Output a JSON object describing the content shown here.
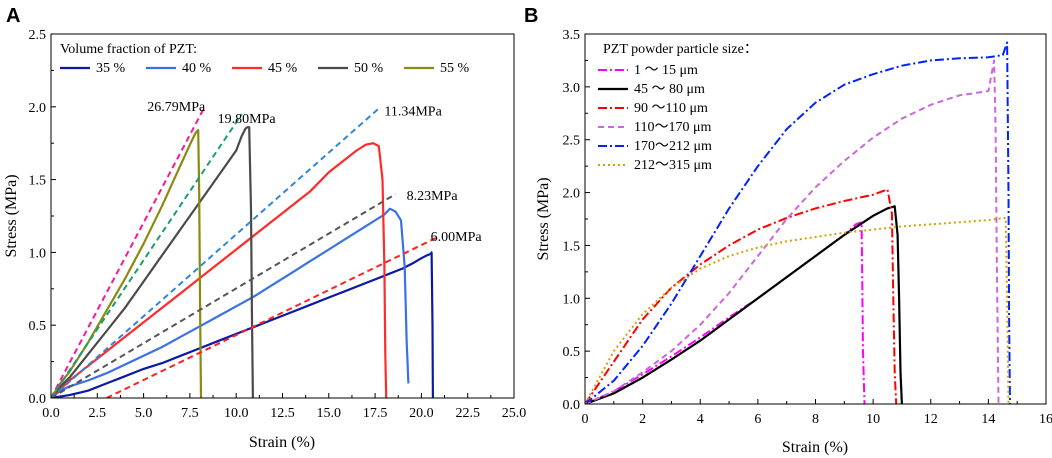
{
  "chart_data": [
    {
      "panel": "A",
      "type": "line",
      "xlabel": "Strain (%)",
      "ylabel": "Stress (MPa)",
      "xlim": [
        0,
        25
      ],
      "ylim": [
        0,
        2.5
      ],
      "xticks": [
        "0.0",
        "2.5",
        "5.0",
        "7.5",
        "10.0",
        "12.5",
        "15.0",
        "17.5",
        "20.0",
        "22.5",
        "25.0"
      ],
      "yticks": [
        "0.0",
        "0.5",
        "1.0",
        "1.5",
        "2.0",
        "2.5"
      ],
      "legend_title": "Volume fraction of PZT:",
      "series": [
        {
          "name": "35 %",
          "color": "#0b1aa6",
          "width": 2.2,
          "dash": "",
          "x": [
            0,
            1,
            2,
            3,
            4,
            5,
            6,
            7,
            8,
            9,
            10,
            11,
            12,
            13,
            14,
            15,
            16,
            17,
            18,
            19,
            19.6,
            20.0,
            20.3,
            20.5,
            20.55,
            20.6,
            20.62
          ],
          "y": [
            0,
            0.02,
            0.05,
            0.1,
            0.15,
            0.2,
            0.24,
            0.29,
            0.34,
            0.39,
            0.44,
            0.49,
            0.54,
            0.59,
            0.64,
            0.69,
            0.74,
            0.79,
            0.84,
            0.89,
            0.93,
            0.96,
            0.98,
            0.99,
            1.0,
            0.5,
            0
          ]
        },
        {
          "name": "40 %",
          "color": "#3b71e6",
          "width": 2.2,
          "dash": "",
          "x": [
            0,
            0.5,
            1,
            2,
            3,
            4,
            5,
            6,
            7,
            8,
            9,
            10,
            11,
            12,
            13,
            14,
            15,
            16,
            17,
            18,
            18.3,
            18.6,
            18.9,
            19.1,
            19.2,
            19.3
          ],
          "y": [
            0,
            0.05,
            0.08,
            0.12,
            0.17,
            0.23,
            0.29,
            0.35,
            0.42,
            0.49,
            0.56,
            0.63,
            0.7,
            0.78,
            0.86,
            0.94,
            1.02,
            1.1,
            1.18,
            1.26,
            1.3,
            1.28,
            1.22,
            0.9,
            0.4,
            0.1
          ]
        },
        {
          "name": "45 %",
          "color": "#ff2a2a",
          "width": 2.2,
          "dash": "",
          "x": [
            0,
            0.5,
            1,
            2,
            3,
            4,
            5,
            6,
            7,
            8,
            9,
            10,
            11,
            12,
            13,
            14,
            15,
            16,
            16.5,
            17,
            17.4,
            17.7,
            17.9,
            18.0,
            18.05,
            18.1
          ],
          "y": [
            0,
            0.06,
            0.12,
            0.22,
            0.32,
            0.42,
            0.52,
            0.62,
            0.72,
            0.82,
            0.92,
            1.02,
            1.12,
            1.22,
            1.32,
            1.42,
            1.55,
            1.65,
            1.7,
            1.74,
            1.75,
            1.73,
            1.5,
            0.9,
            0.3,
            0
          ]
        },
        {
          "name": "50 %",
          "color": "#4a4a4a",
          "width": 2.2,
          "dash": "",
          "x": [
            0,
            0.5,
            1,
            2,
            3,
            4,
            5,
            6,
            7,
            8,
            9,
            10,
            10.3,
            10.5,
            10.6,
            10.7,
            10.8,
            10.85,
            10.9
          ],
          "y": [
            0,
            0.08,
            0.14,
            0.3,
            0.46,
            0.62,
            0.8,
            0.98,
            1.16,
            1.34,
            1.52,
            1.7,
            1.8,
            1.85,
            1.86,
            1.86,
            1.3,
            0.6,
            0
          ]
        },
        {
          "name": "55 %",
          "color": "#8a8a10",
          "width": 2.2,
          "dash": "",
          "x": [
            0,
            0.5,
            1,
            2,
            3,
            4,
            5,
            6,
            7,
            7.5,
            7.8,
            7.95,
            8.0,
            8.05,
            8.1
          ],
          "y": [
            0,
            0.1,
            0.18,
            0.38,
            0.6,
            0.82,
            1.06,
            1.32,
            1.6,
            1.74,
            1.82,
            1.84,
            1.4,
            0.6,
            0
          ]
        }
      ],
      "fit_lines": [
        {
          "color": "#ff1493",
          "x": [
            0,
            8.3
          ],
          "y": [
            0,
            2.0
          ]
        },
        {
          "color": "#1a9e6e",
          "x": [
            0,
            10.3
          ],
          "y": [
            0,
            1.95
          ]
        },
        {
          "color": "#2e86de",
          "x": [
            0,
            17.8
          ],
          "y": [
            0,
            2.0
          ]
        },
        {
          "color": "#555555",
          "x": [
            0,
            18.6
          ],
          "y": [
            0,
            1.4
          ]
        },
        {
          "color": "#ff2020",
          "x": [
            3.0,
            20.8
          ],
          "y": [
            0,
            1.1
          ]
        }
      ],
      "annotations": [
        {
          "text": "26.79MPa",
          "x": 5.2,
          "y": 1.97
        },
        {
          "text": "19.80MPa",
          "x": 9.0,
          "y": 1.89
        },
        {
          "text": "11.34MPa",
          "x": 18.0,
          "y": 1.94
        },
        {
          "text": "8.23MPa",
          "x": 19.2,
          "y": 1.36
        },
        {
          "text": "6.00MPa",
          "x": 20.5,
          "y": 1.08
        }
      ]
    },
    {
      "panel": "B",
      "type": "line",
      "xlabel": "Strain (%)",
      "ylabel": "Stress (MPa)",
      "xlim": [
        0,
        16
      ],
      "ylim": [
        0,
        3.5
      ],
      "xticks": [
        "0",
        "2",
        "4",
        "6",
        "8",
        "10",
        "12",
        "14",
        "16"
      ],
      "yticks": [
        "0.0",
        "0.5",
        "1.0",
        "1.5",
        "2.0",
        "2.5",
        "3.0",
        "3.5"
      ],
      "legend_title": "PZT powder particle size：",
      "series": [
        {
          "name": "1 ～ 15 μm",
          "color": "#ff00ff",
          "width": 2,
          "dash": "9,3,2,3",
          "x": [
            0,
            1,
            2,
            3,
            4,
            5,
            6,
            7,
            8,
            9,
            9.4,
            9.6,
            9.62,
            9.65,
            9.7
          ],
          "y": [
            0,
            0.12,
            0.28,
            0.45,
            0.63,
            0.82,
            1.0,
            1.2,
            1.4,
            1.6,
            1.7,
            1.72,
            1.2,
            0.5,
            0
          ]
        },
        {
          "name": "45 ～ 80 μm",
          "color": "#000000",
          "width": 2.2,
          "dash": "",
          "x": [
            0,
            1,
            2,
            3,
            4,
            5,
            6,
            7,
            8,
            9,
            10,
            10.5,
            10.75,
            10.85,
            10.9,
            10.95,
            11.0
          ],
          "y": [
            0,
            0.1,
            0.25,
            0.42,
            0.6,
            0.8,
            1.0,
            1.2,
            1.4,
            1.6,
            1.78,
            1.85,
            1.87,
            1.6,
            1.0,
            0.3,
            0
          ]
        },
        {
          "name": "90 ～110 μm",
          "color": "#ff0000",
          "width": 2,
          "dash": "9,3,2,3",
          "x": [
            0,
            1,
            2,
            3,
            4,
            5,
            6,
            7,
            8,
            9,
            10,
            10.5,
            10.65,
            10.7,
            10.75,
            10.8
          ],
          "y": [
            0,
            0.4,
            0.8,
            1.1,
            1.32,
            1.5,
            1.65,
            1.76,
            1.85,
            1.92,
            1.98,
            2.03,
            1.8,
            1.0,
            0.3,
            0
          ]
        },
        {
          "name": "110～170 μm",
          "color": "#cc66dd",
          "width": 2,
          "dash": "6,4",
          "x": [
            0,
            1,
            2,
            3,
            4,
            5,
            6,
            7,
            8,
            9,
            10,
            11,
            12,
            13,
            14,
            14.2,
            14.25,
            14.3,
            14.35
          ],
          "y": [
            0,
            0.12,
            0.3,
            0.5,
            0.75,
            1.05,
            1.4,
            1.75,
            2.05,
            2.3,
            2.52,
            2.7,
            2.83,
            2.92,
            2.96,
            3.25,
            2.6,
            1.2,
            0
          ]
        },
        {
          "name": "170～212 μm",
          "color": "#0022ff",
          "width": 2,
          "dash": "9,3,2,3",
          "x": [
            0,
            1,
            2,
            3,
            4,
            5,
            6,
            7,
            8,
            9,
            10,
            11,
            12,
            13,
            14,
            14.5,
            14.65,
            14.7,
            14.72,
            14.75
          ],
          "y": [
            0,
            0.22,
            0.55,
            0.95,
            1.4,
            1.85,
            2.25,
            2.6,
            2.85,
            3.02,
            3.12,
            3.2,
            3.25,
            3.27,
            3.28,
            3.3,
            3.42,
            2.0,
            0.8,
            0
          ]
        },
        {
          "name": "212～315 μm",
          "color": "#d4a000",
          "width": 2,
          "dash": "2,3",
          "x": [
            0,
            1,
            2,
            3,
            4,
            5,
            6,
            7,
            8,
            9,
            10,
            11,
            12,
            13,
            14,
            14.6,
            14.65,
            14.7
          ],
          "y": [
            0,
            0.5,
            0.85,
            1.1,
            1.28,
            1.4,
            1.48,
            1.54,
            1.58,
            1.62,
            1.65,
            1.68,
            1.7,
            1.72,
            1.74,
            1.76,
            1.0,
            0
          ]
        }
      ]
    }
  ]
}
